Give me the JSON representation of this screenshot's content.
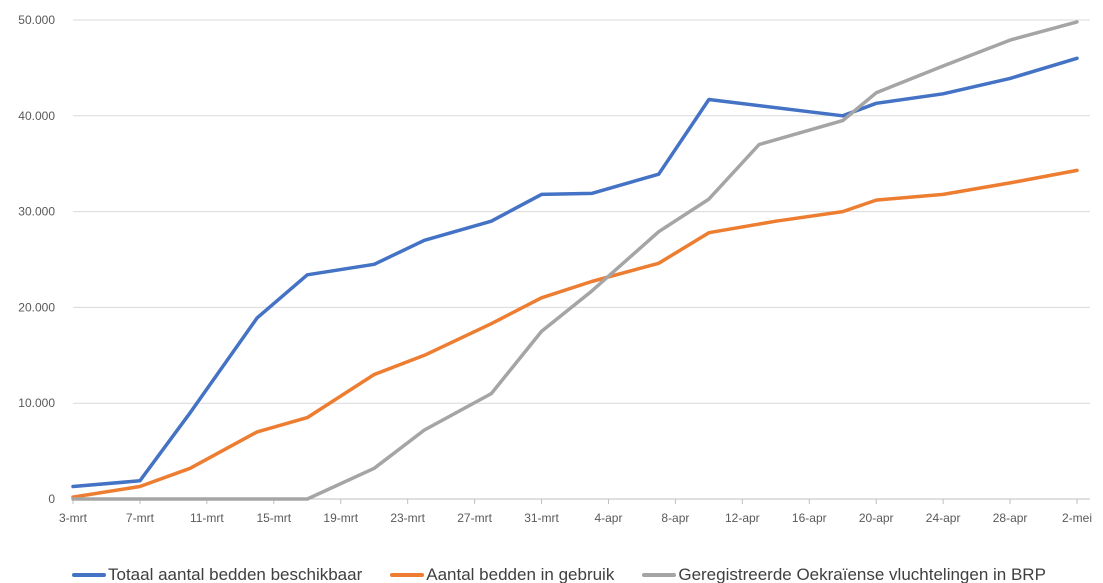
{
  "chart_data": {
    "type": "line",
    "title": "",
    "xlabel": "",
    "ylabel": "",
    "ylim": [
      0,
      50000
    ],
    "y_ticks": [
      "0",
      "10.000",
      "20.000",
      "30.000",
      "40.000",
      "50.000"
    ],
    "y_tick_values": [
      0,
      10000,
      20000,
      30000,
      40000,
      50000
    ],
    "x_range": [
      "3-mrt",
      "2-mei"
    ],
    "x_tick_labels": [
      "3-mrt",
      "7-mrt",
      "11-mrt",
      "15-mrt",
      "19-mrt",
      "23-mrt",
      "27-mrt",
      "31-mrt",
      "4-apr",
      "8-apr",
      "12-apr",
      "16-apr",
      "20-apr",
      "24-apr",
      "28-apr",
      "2-mei"
    ],
    "grid": "horizontal",
    "legend_position": "bottom",
    "series": [
      {
        "name": "Totaal aantal bedden beschikbaar",
        "color": "#4472C4",
        "points": [
          [
            "3-mrt",
            1300
          ],
          [
            "7-mrt",
            1900
          ],
          [
            "10-mrt",
            9000
          ],
          [
            "14-mrt",
            18900
          ],
          [
            "17-mrt",
            23400
          ],
          [
            "21-mrt",
            24500
          ],
          [
            "24-mrt",
            27000
          ],
          [
            "28-mrt",
            29000
          ],
          [
            "31-mrt",
            31800
          ],
          [
            "3-apr",
            31900
          ],
          [
            "7-apr",
            33900
          ],
          [
            "10-apr",
            41700
          ],
          [
            "18-apr",
            40000
          ],
          [
            "20-apr",
            41300
          ],
          [
            "24-apr",
            42300
          ],
          [
            "28-apr",
            43900
          ],
          [
            "2-mei",
            46000
          ]
        ]
      },
      {
        "name": "Aantal bedden in gebruik",
        "color": "#ED7D31",
        "points": [
          [
            "3-mrt",
            200
          ],
          [
            "7-mrt",
            1300
          ],
          [
            "10-mrt",
            3200
          ],
          [
            "14-mrt",
            7000
          ],
          [
            "17-mrt",
            8500
          ],
          [
            "21-mrt",
            13000
          ],
          [
            "24-mrt",
            15000
          ],
          [
            "28-mrt",
            18300
          ],
          [
            "31-mrt",
            21000
          ],
          [
            "3-apr",
            22700
          ],
          [
            "7-apr",
            24600
          ],
          [
            "10-apr",
            27800
          ],
          [
            "14-apr",
            29000
          ],
          [
            "18-apr",
            30000
          ],
          [
            "20-apr",
            31200
          ],
          [
            "24-apr",
            31800
          ],
          [
            "28-apr",
            33000
          ],
          [
            "2-mei",
            34300
          ]
        ]
      },
      {
        "name": "Geregistreerde Oekraïense vluchtelingen in BRP",
        "color": "#A5A5A5",
        "points": [
          [
            "3-mrt",
            0
          ],
          [
            "17-mrt",
            0
          ],
          [
            "21-mrt",
            3200
          ],
          [
            "24-mrt",
            7200
          ],
          [
            "28-mrt",
            11000
          ],
          [
            "31-mrt",
            17500
          ],
          [
            "3-apr",
            21700
          ],
          [
            "7-apr",
            27900
          ],
          [
            "10-apr",
            31300
          ],
          [
            "13-apr",
            37000
          ],
          [
            "18-apr",
            39500
          ],
          [
            "20-apr",
            42400
          ],
          [
            "24-apr",
            45200
          ],
          [
            "28-apr",
            47900
          ],
          [
            "2-mei",
            49800
          ]
        ]
      }
    ]
  }
}
